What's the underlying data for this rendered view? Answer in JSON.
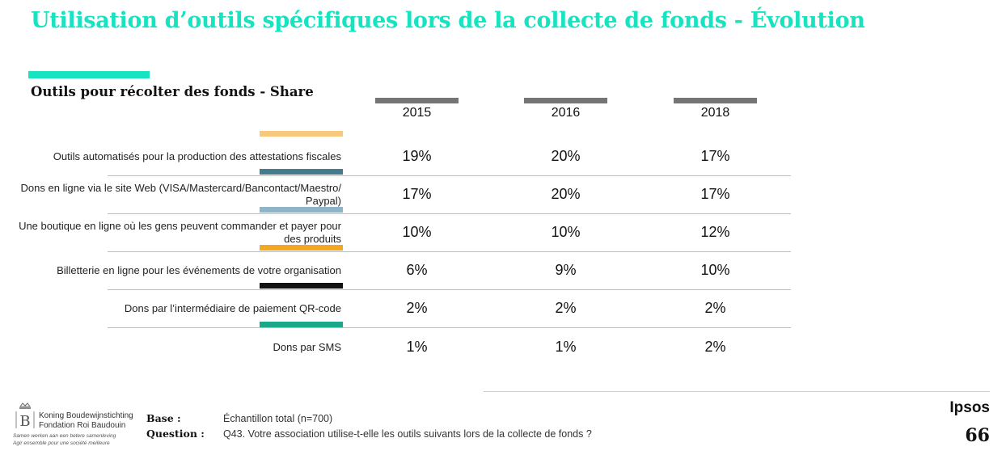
{
  "title": "Utilisation d’outils spécifiques lors de la collecte de fonds - Évolution",
  "subtitle": "Outils pour récolter des fonds - Share",
  "years": [
    "2015",
    "2016",
    "2018"
  ],
  "colors": {
    "accent": "#17e3c0",
    "year_bar": "#757575"
  },
  "rows": [
    {
      "label": "Outils automatisés pour la production des attestations fiscales",
      "color": "#f7c97d",
      "values": [
        "19%",
        "20%",
        "17%"
      ]
    },
    {
      "label": "Dons en ligne via le site Web (VISA/Mastercard/Bancontact/Maestro/ Paypal)",
      "color": "#457b8f",
      "values": [
        "17%",
        "20%",
        "17%"
      ]
    },
    {
      "label": "Une boutique en ligne où les gens peuvent commander et payer pour des produits",
      "color": "#8fb4c8",
      "values": [
        "10%",
        "10%",
        "12%"
      ]
    },
    {
      "label": "Billetterie en ligne pour les événements de votre organisation",
      "color": "#f5a623",
      "values": [
        "6%",
        "9%",
        "10%"
      ]
    },
    {
      "label": "Dons par l’intermédiaire de paiement QR-code",
      "color": "#111111",
      "values": [
        "2%",
        "2%",
        "2%"
      ]
    },
    {
      "label": "Dons par SMS",
      "color": "#1aa88a",
      "values": [
        "1%",
        "1%",
        "2%"
      ]
    }
  ],
  "footer": {
    "base_label": "Base :",
    "base_value": "Échantillon total (n=700)",
    "question_label": "Question :",
    "question_value": "Q43. Votre association utilise-t-elle les outils suivants lors de la collecte de fonds ?",
    "logo_line1": "Koning Boudewijnstichting",
    "logo_line2": "Fondation Roi Baudouin",
    "logo_slogan1": "Samen werken aan een betere samenleving",
    "logo_slogan2": "Agir ensemble pour une société meilleure",
    "brand": "Ipsos",
    "page_number": "66"
  }
}
